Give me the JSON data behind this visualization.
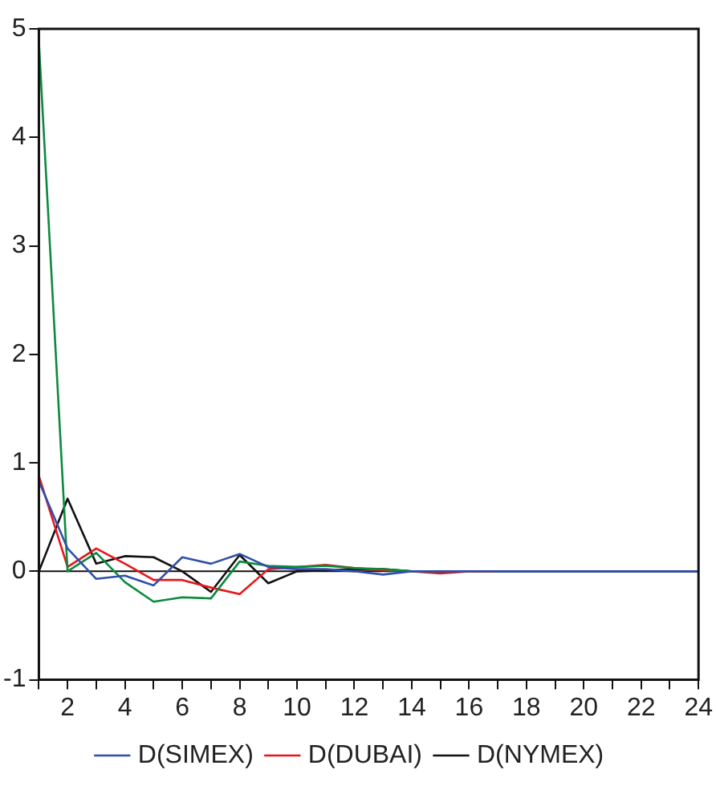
{
  "chart_data": {
    "type": "line",
    "x": [
      1,
      2,
      3,
      4,
      5,
      6,
      7,
      8,
      9,
      10,
      11,
      12,
      13,
      14,
      15,
      16,
      17,
      18,
      19,
      20,
      21,
      22,
      23,
      24
    ],
    "series": [
      {
        "name": "D(SIMEX)",
        "color": "#2f4fa8",
        "values": [
          0.83,
          0.21,
          -0.07,
          -0.04,
          -0.13,
          0.13,
          0.07,
          0.16,
          0.04,
          0.02,
          0.02,
          0,
          -0.03,
          0,
          0,
          0,
          0,
          0,
          0,
          0,
          0,
          0,
          0,
          0
        ]
      },
      {
        "color": "#0b8a3e",
        "values": [
          4.88,
          0,
          0.17,
          -0.1,
          -0.28,
          -0.24,
          -0.25,
          0.09,
          0.05,
          0.04,
          0.05,
          0.03,
          0.02,
          0,
          0,
          null,
          null,
          null,
          null,
          null,
          null,
          null,
          null,
          null
        ]
      },
      {
        "name": "D(DUBAI)",
        "color": "#e8151b",
        "values": [
          0.88,
          0.04,
          0.21,
          0.07,
          -0.08,
          -0.08,
          -0.15,
          -0.21,
          0.02,
          0.04,
          0.06,
          0.03,
          0.01,
          0,
          -0.02,
          0,
          0,
          null,
          null,
          null,
          null,
          null,
          null,
          null
        ]
      },
      {
        "name": "D(NYMEX)",
        "color": "#111111",
        "values": [
          0,
          0.67,
          0.07,
          0.14,
          0.13,
          0,
          -0.19,
          0.15,
          -0.11,
          0,
          0.01,
          0.02,
          0.02,
          0,
          0,
          0,
          0,
          0,
          0,
          0,
          0,
          0,
          0,
          0
        ]
      }
    ],
    "xlim": [
      1,
      24
    ],
    "xticks": [
      {
        "value": 1,
        "label": null
      },
      2,
      {
        "value": 3,
        "label": null
      },
      4,
      {
        "value": 5,
        "label": null
      },
      6,
      {
        "value": 7,
        "label": null
      },
      8,
      {
        "value": 9,
        "label": null
      },
      10,
      {
        "value": 11,
        "label": null
      },
      12,
      {
        "value": 13,
        "label": null
      },
      14,
      {
        "value": 15,
        "label": null
      },
      16,
      {
        "value": 17,
        "label": null
      },
      18,
      {
        "value": 19,
        "label": null
      },
      20,
      {
        "value": 21,
        "label": null
      },
      22,
      {
        "value": 23,
        "label": null
      },
      24
    ],
    "ylim": [
      -1,
      5
    ],
    "yticks": [
      -1,
      0,
      1,
      2,
      3,
      4,
      5
    ],
    "ref_lines": [
      {
        "axis": "y",
        "value": 0,
        "color": "#111111"
      }
    ],
    "grid": false,
    "legend": "bottom",
    "marker": "none",
    "line_style": "solid"
  }
}
